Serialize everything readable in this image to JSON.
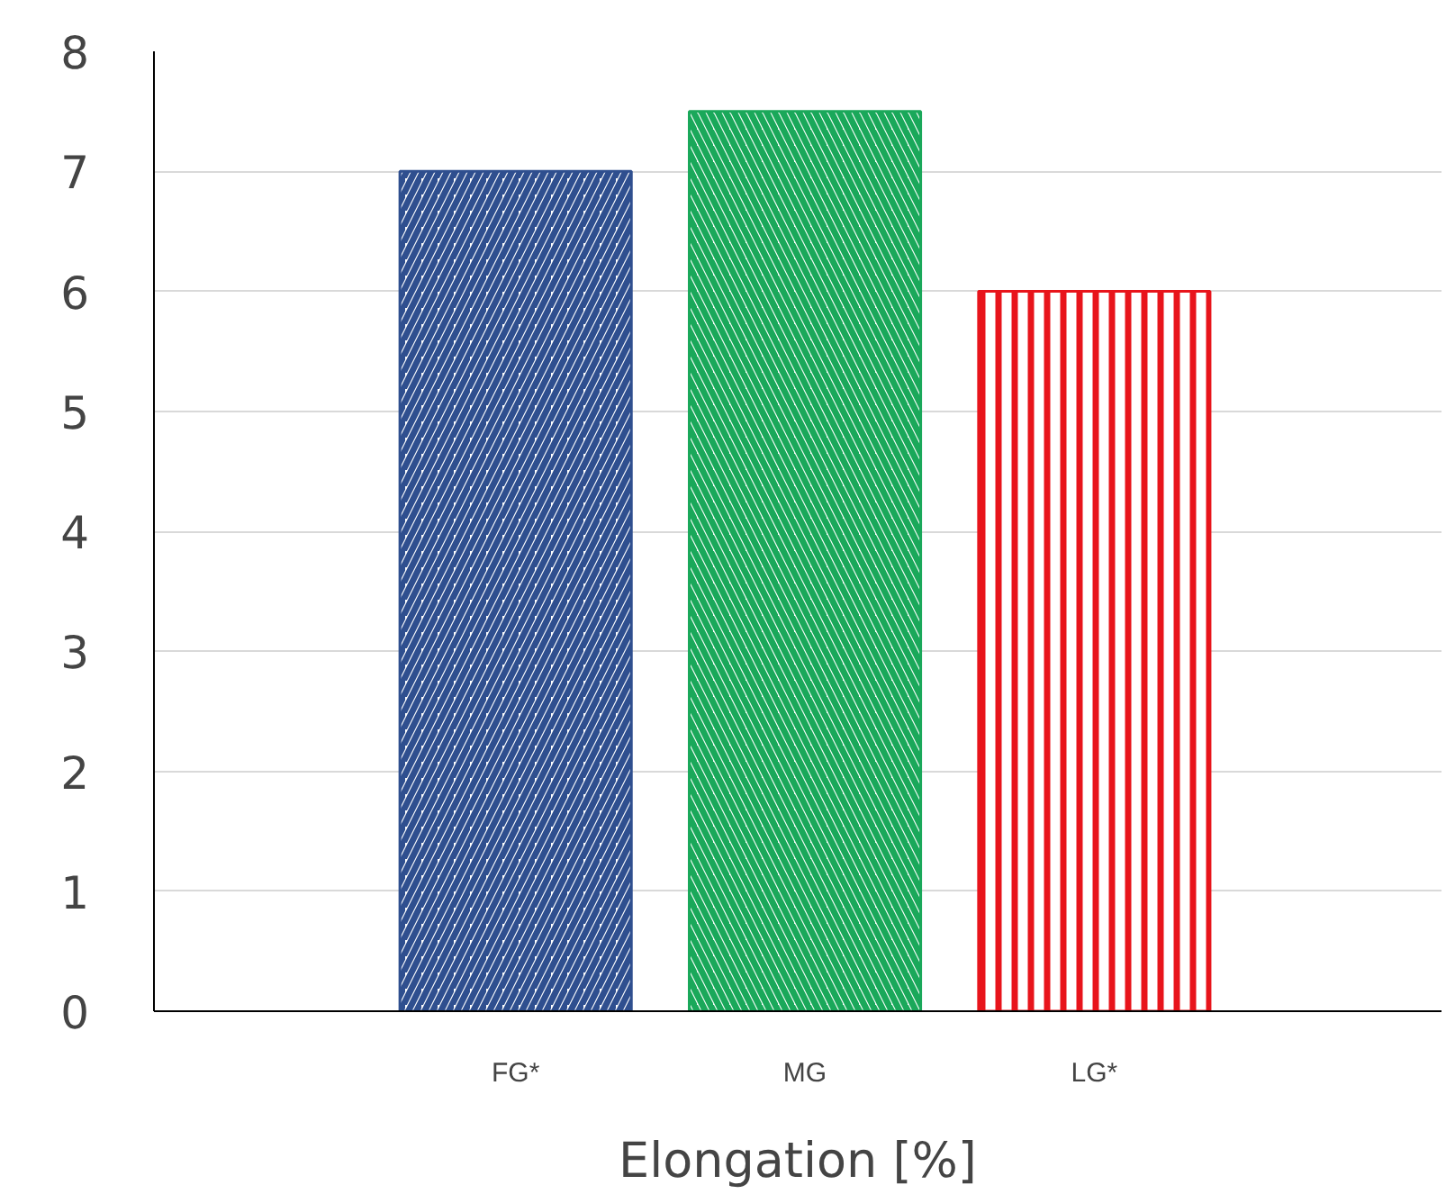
{
  "chart_data": {
    "type": "bar",
    "xlabel": "Elongation [%]",
    "categories": [
      "FG*",
      "MG",
      "LG*"
    ],
    "values": [
      7,
      7.5,
      6
    ],
    "colors": [
      "#2f4f8f",
      "#1aa85a",
      "#e8141b"
    ],
    "ylim": [
      0,
      8
    ],
    "yticks": [
      0,
      1,
      2,
      3,
      4,
      5,
      6,
      7,
      8
    ],
    "grid": "y"
  }
}
